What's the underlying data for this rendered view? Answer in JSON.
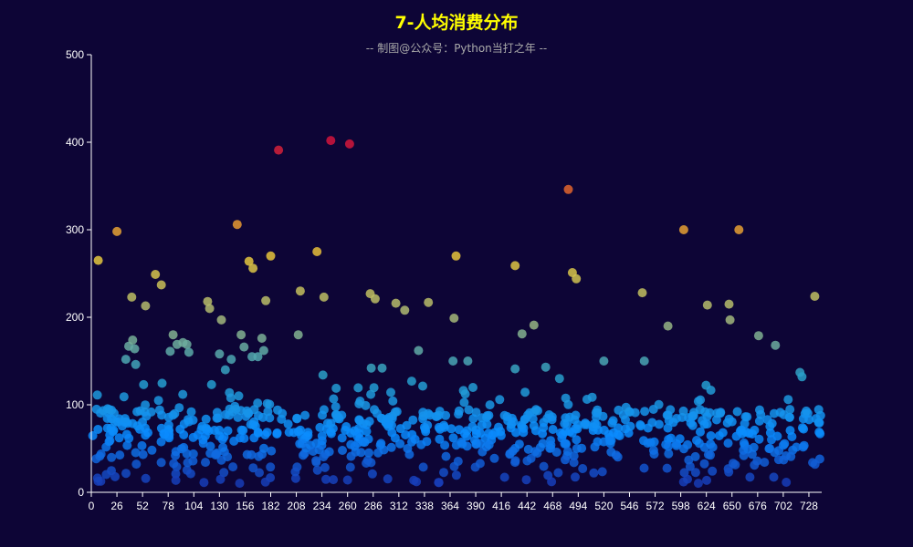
{
  "chart_data": {
    "type": "scatter",
    "title": "7-人均消费分布",
    "subtitle": "-- 制图@公众号：Python当打之年 --",
    "ylim": [
      0,
      500
    ],
    "y_ticks": [
      0,
      100,
      200,
      300,
      400,
      500
    ],
    "xlim": [
      0,
      741
    ],
    "x_ticks": [
      0,
      26,
      52,
      78,
      104,
      130,
      156,
      182,
      208,
      234,
      260,
      286,
      312,
      338,
      364,
      390,
      416,
      442,
      468,
      494,
      520,
      546,
      572,
      598,
      624,
      650,
      676,
      702,
      728
    ],
    "grid": false,
    "colors": {
      "background": "#0d0536",
      "title": "#ffff00",
      "axis": "#ffffff"
    },
    "visual_map": {
      "min": 0,
      "max": 400,
      "stops": [
        "#1a2da8",
        "#0a8cff",
        "#2aa0c8",
        "#a8b878",
        "#e6c83c",
        "#e6782a",
        "#d2143c"
      ]
    },
    "highlighted_points": [
      {
        "x": 7,
        "y": 265
      },
      {
        "x": 26,
        "y": 298
      },
      {
        "x": 41,
        "y": 223
      },
      {
        "x": 55,
        "y": 213
      },
      {
        "x": 65,
        "y": 249
      },
      {
        "x": 71,
        "y": 237
      },
      {
        "x": 118,
        "y": 218
      },
      {
        "x": 120,
        "y": 210
      },
      {
        "x": 132,
        "y": 197
      },
      {
        "x": 148,
        "y": 306
      },
      {
        "x": 160,
        "y": 264
      },
      {
        "x": 164,
        "y": 256
      },
      {
        "x": 177,
        "y": 219
      },
      {
        "x": 182,
        "y": 270
      },
      {
        "x": 190,
        "y": 391
      },
      {
        "x": 212,
        "y": 230
      },
      {
        "x": 229,
        "y": 275
      },
      {
        "x": 236,
        "y": 223
      },
      {
        "x": 243,
        "y": 402
      },
      {
        "x": 262,
        "y": 398
      },
      {
        "x": 283,
        "y": 227
      },
      {
        "x": 288,
        "y": 221
      },
      {
        "x": 309,
        "y": 216
      },
      {
        "x": 318,
        "y": 208
      },
      {
        "x": 342,
        "y": 217
      },
      {
        "x": 368,
        "y": 199
      },
      {
        "x": 370,
        "y": 270
      },
      {
        "x": 430,
        "y": 259
      },
      {
        "x": 437,
        "y": 181
      },
      {
        "x": 449,
        "y": 191
      },
      {
        "x": 484,
        "y": 346
      },
      {
        "x": 488,
        "y": 251
      },
      {
        "x": 492,
        "y": 244
      },
      {
        "x": 559,
        "y": 228
      },
      {
        "x": 585,
        "y": 190
      },
      {
        "x": 601,
        "y": 300
      },
      {
        "x": 625,
        "y": 214
      },
      {
        "x": 647,
        "y": 215
      },
      {
        "x": 648,
        "y": 197
      },
      {
        "x": 657,
        "y": 300
      },
      {
        "x": 677,
        "y": 179
      },
      {
        "x": 694,
        "y": 168
      },
      {
        "x": 734,
        "y": 224
      },
      {
        "x": 35,
        "y": 152
      },
      {
        "x": 38,
        "y": 167
      },
      {
        "x": 42,
        "y": 174
      },
      {
        "x": 44,
        "y": 164
      },
      {
        "x": 45,
        "y": 146
      },
      {
        "x": 80,
        "y": 161
      },
      {
        "x": 83,
        "y": 180
      },
      {
        "x": 87,
        "y": 169
      },
      {
        "x": 93,
        "y": 171
      },
      {
        "x": 97,
        "y": 169
      },
      {
        "x": 99,
        "y": 160
      },
      {
        "x": 130,
        "y": 158
      },
      {
        "x": 136,
        "y": 140
      },
      {
        "x": 142,
        "y": 152
      },
      {
        "x": 152,
        "y": 180
      },
      {
        "x": 155,
        "y": 166
      },
      {
        "x": 163,
        "y": 155
      },
      {
        "x": 169,
        "y": 155
      },
      {
        "x": 173,
        "y": 176
      },
      {
        "x": 175,
        "y": 162
      },
      {
        "x": 210,
        "y": 180
      },
      {
        "x": 235,
        "y": 134
      },
      {
        "x": 284,
        "y": 142
      },
      {
        "x": 295,
        "y": 142
      },
      {
        "x": 325,
        "y": 127
      },
      {
        "x": 332,
        "y": 162
      },
      {
        "x": 367,
        "y": 150
      },
      {
        "x": 382,
        "y": 150
      },
      {
        "x": 430,
        "y": 141
      },
      {
        "x": 461,
        "y": 143
      },
      {
        "x": 475,
        "y": 130
      },
      {
        "x": 520,
        "y": 150
      },
      {
        "x": 561,
        "y": 150
      },
      {
        "x": 719,
        "y": 137
      },
      {
        "x": 721,
        "y": 132
      }
    ],
    "bulk_series": {
      "count": 700,
      "y_range": [
        10,
        125
      ],
      "x_range": [
        0,
        741
      ]
    }
  }
}
